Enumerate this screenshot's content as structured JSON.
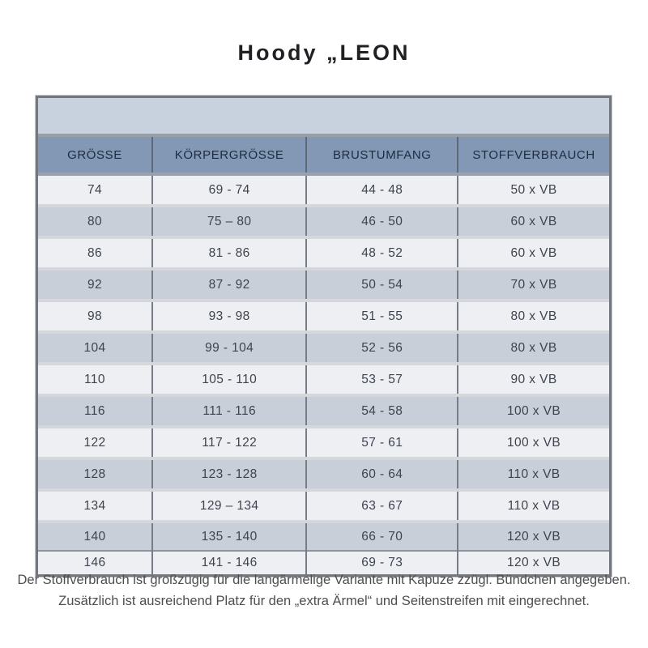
{
  "title": "Hoody „LEON",
  "table": {
    "columns": [
      "GRÖSSE",
      "KÖRPERGRÖSSE",
      "BRUSTUMFANG",
      "STOFFVERBRAUCH"
    ],
    "rows": [
      [
        "74",
        "69 - 74",
        "44 - 48",
        "50 x VB"
      ],
      [
        "80",
        "75 – 80",
        "46 - 50",
        "60 x VB"
      ],
      [
        "86",
        "81 - 86",
        "48 - 52",
        "60 x VB"
      ],
      [
        "92",
        "87 - 92",
        "50 - 54",
        "70 x VB"
      ],
      [
        "98",
        "93 - 98",
        "51 - 55",
        "80 x VB"
      ],
      [
        "104",
        "99 - 104",
        "52 - 56",
        "80 x VB"
      ],
      [
        "110",
        "105 - 110",
        "53 - 57",
        "90 x VB"
      ],
      [
        "116",
        "111 - 116",
        "54 - 58",
        "100 x VB"
      ],
      [
        "122",
        "117 - 122",
        "57 - 61",
        "100 x VB"
      ],
      [
        "128",
        "123 - 128",
        "60 - 64",
        "110 x VB"
      ],
      [
        "134",
        "129 – 134",
        "63 - 67",
        "110 x VB"
      ],
      [
        "140",
        "135 - 140",
        "66 - 70",
        "120 x VB"
      ],
      [
        "146",
        "141 - 146",
        "69 - 73",
        "120 x VB"
      ]
    ]
  },
  "footer": {
    "line1": "Der Stoffverbrauch ist großzügig für die langärmelige Variante mit Kapuze zzügl. Bündchen angegeben.",
    "line2": "Zusätzlich ist ausreichend Platz für den „extra Ärmel“ und Seitenstreifen mit eingerechnet."
  },
  "colors": {
    "top_band_bg": "#c7d2de",
    "header_bg": "#8398b4",
    "header_text": "#1c2c42",
    "row_light_bg": "#edeff3",
    "row_dark_bg": "#c9cfd9",
    "row_text": "#3e434e",
    "frame_border": "#73787e"
  }
}
